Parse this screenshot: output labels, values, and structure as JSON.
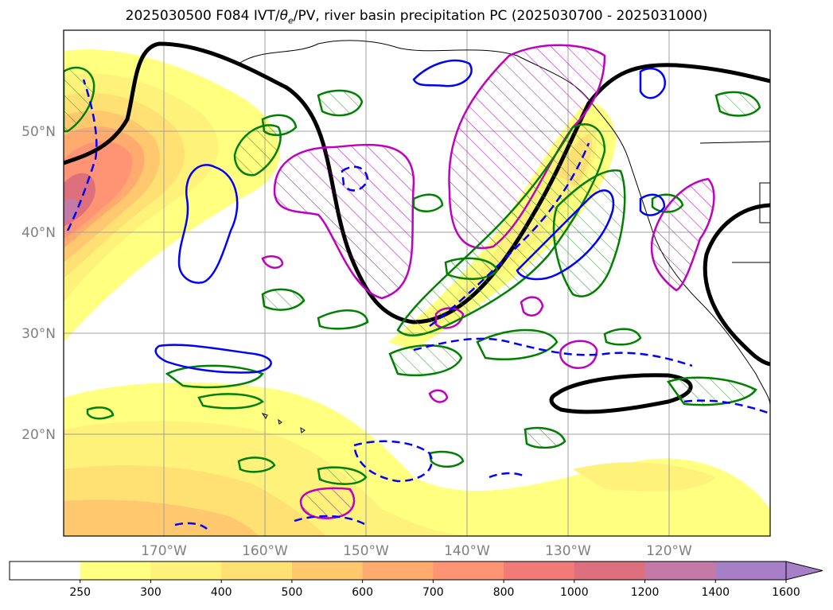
{
  "title": {
    "prefix": "2025030500 F084 IVT/",
    "theta": "θ",
    "theta_sub": "e",
    "suffix": "/PV, river basin precipitation PC (2025030700 - 2025031000)"
  },
  "map": {
    "lat_labels": [
      "50°N",
      "40°N",
      "30°N",
      "20°N"
    ],
    "lon_labels": [
      "170°W",
      "160°W",
      "150°W",
      "140°W",
      "130°W",
      "120°W"
    ]
  },
  "colorbar": {
    "ticks": [
      "250",
      "300",
      "400",
      "500",
      "600",
      "700",
      "800",
      "1000",
      "1200",
      "1400",
      "1600"
    ],
    "colors": [
      "#ffffff",
      "#ffff80",
      "#fff27a",
      "#ffe072",
      "#ffc86e",
      "#ffab70",
      "#ff9474",
      "#f27a78",
      "#de707e",
      "#c47aa6",
      "#a77fc6"
    ],
    "extend": "max"
  },
  "legend_colors": {
    "pv_solid": "#0000ff",
    "pv_dashed": "#0000ff",
    "precip_green": "#008000",
    "precip_magenta": "#c000c0",
    "theta_black": "#000000"
  }
}
